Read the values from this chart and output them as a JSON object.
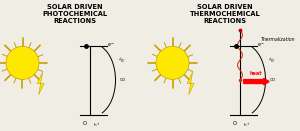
{
  "bg_color": "#f0ede5",
  "title_left": "SOLAR DRIVEN\nPHOTOCHEMICAL\nREACTIONS",
  "title_right": "SOLAR DRIVEN\nTHERMOCHEMICAL\nREACTIONS",
  "thermalization_label": "Thermalization",
  "heat_label": "heat",
  "title_fontsize": 4.8,
  "label_fontsize": 3.8,
  "sun_color": "#FFE800",
  "sun_ray_color": "#C8A000",
  "lightning_fill": "#FFE800",
  "lightning_edge": "#C8A000"
}
